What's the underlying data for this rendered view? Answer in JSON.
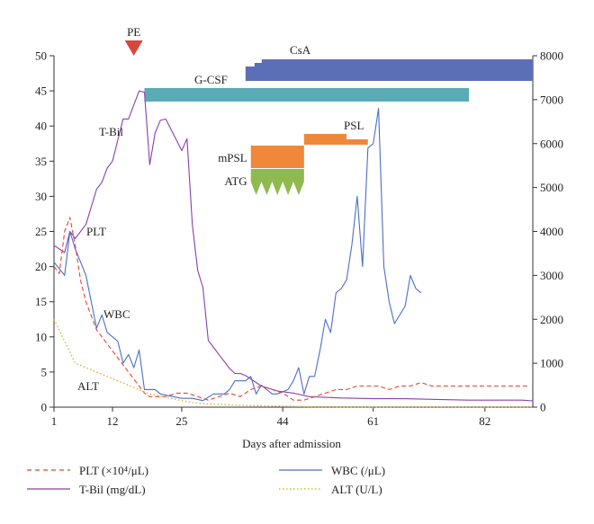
{
  "chart_data": {
    "type": "line",
    "xlabel": "Days after admission",
    "x_ticks": [
      1,
      12,
      25,
      44,
      61,
      82
    ],
    "x_range": [
      1,
      91
    ],
    "y_left_range": [
      0,
      50
    ],
    "y_left_ticks": [
      0,
      5,
      10,
      15,
      20,
      25,
      30,
      35,
      40,
      45,
      50
    ],
    "y_right_range": [
      0,
      8000
    ],
    "y_right_ticks": [
      0,
      1000,
      2000,
      3000,
      4000,
      5000,
      6000,
      7000,
      8000
    ],
    "grid": false,
    "legend_position": "bottom",
    "series": [
      {
        "name": "T-Bil (mg/dL)",
        "label": "T-Bil",
        "axis": "left",
        "color": "#8a3fb0",
        "style": "solid",
        "points": [
          [
            1,
            23
          ],
          [
            3,
            22
          ],
          [
            4,
            25
          ],
          [
            5,
            24
          ],
          [
            7,
            26
          ],
          [
            9,
            31
          ],
          [
            10,
            32
          ],
          [
            11,
            34
          ],
          [
            12,
            35
          ],
          [
            13,
            38
          ],
          [
            14,
            41
          ],
          [
            15,
            41
          ],
          [
            16,
            43
          ],
          [
            17,
            45
          ],
          [
            18,
            44.8
          ],
          [
            19,
            34.5
          ],
          [
            20,
            39
          ],
          [
            21,
            40.8
          ],
          [
            22,
            41
          ],
          [
            24,
            38
          ],
          [
            25,
            36.5
          ],
          [
            26,
            38.2
          ],
          [
            27,
            26
          ],
          [
            28,
            19.5
          ],
          [
            29,
            17
          ],
          [
            30,
            9.5
          ],
          [
            31,
            8.5
          ],
          [
            32,
            7.5
          ],
          [
            33,
            6.5
          ],
          [
            34,
            5.5
          ],
          [
            35,
            4.8
          ],
          [
            36,
            4.8
          ],
          [
            37,
            4.5
          ],
          [
            40,
            3
          ],
          [
            43,
            2.3
          ],
          [
            46,
            2
          ],
          [
            49,
            1.5
          ],
          [
            55,
            1.3
          ],
          [
            61,
            1.2
          ],
          [
            67,
            1.2
          ],
          [
            73,
            1.1
          ],
          [
            79,
            1
          ],
          [
            85,
            1
          ],
          [
            89,
            1
          ],
          [
            91,
            0.9
          ]
        ]
      },
      {
        "name": "WBC (/μL)",
        "label": "WBC",
        "axis": "right",
        "color": "#4a6fc8",
        "style": "solid",
        "points": [
          [
            1,
            3300
          ],
          [
            3,
            3000
          ],
          [
            4,
            4000
          ],
          [
            5,
            3600
          ],
          [
            6,
            3300
          ],
          [
            7,
            3000
          ],
          [
            9,
            1800
          ],
          [
            10,
            2100
          ],
          [
            11,
            1700
          ],
          [
            12,
            1600
          ],
          [
            13,
            1500
          ],
          [
            14,
            1000
          ],
          [
            15,
            1200
          ],
          [
            16,
            900
          ],
          [
            17,
            1300
          ],
          [
            18,
            400
          ],
          [
            19,
            400
          ],
          [
            20,
            400
          ],
          [
            21,
            300
          ],
          [
            23,
            250
          ],
          [
            25,
            200
          ],
          [
            27,
            200
          ],
          [
            29,
            150
          ],
          [
            31,
            300
          ],
          [
            32,
            300
          ],
          [
            33,
            300
          ],
          [
            34,
            400
          ],
          [
            35,
            600
          ],
          [
            36,
            600
          ],
          [
            37,
            600
          ],
          [
            38,
            700
          ],
          [
            39,
            300
          ],
          [
            40,
            500
          ],
          [
            41,
            400
          ],
          [
            42,
            300
          ],
          [
            43,
            300
          ],
          [
            45,
            400
          ],
          [
            46,
            600
          ],
          [
            47,
            900
          ],
          [
            48,
            300
          ],
          [
            49,
            700
          ],
          [
            50,
            700
          ],
          [
            51,
            1300
          ],
          [
            52,
            2000
          ],
          [
            53,
            1700
          ],
          [
            54,
            2600
          ],
          [
            55,
            2700
          ],
          [
            56,
            2900
          ],
          [
            57,
            3700
          ],
          [
            58,
            4800
          ],
          [
            59,
            3200
          ],
          [
            60,
            5900
          ],
          [
            61,
            6000
          ],
          [
            62,
            6800
          ],
          [
            63,
            3200
          ],
          [
            64,
            2400
          ],
          [
            65,
            1900
          ],
          [
            66,
            2100
          ],
          [
            67,
            2300
          ],
          [
            68,
            3000
          ],
          [
            69,
            2700
          ],
          [
            70,
            2600
          ]
        ]
      },
      {
        "name": "PLT (×10⁴/μL)",
        "label": "PLT",
        "axis": "left",
        "color": "#e8452c",
        "style": "dashed",
        "points": [
          [
            1,
            20
          ],
          [
            2,
            19
          ],
          [
            3,
            25
          ],
          [
            4,
            27
          ],
          [
            5,
            23
          ],
          [
            6,
            18
          ],
          [
            7,
            15
          ],
          [
            8,
            13
          ],
          [
            9,
            11
          ],
          [
            10,
            10
          ],
          [
            11,
            9
          ],
          [
            12,
            8
          ],
          [
            13,
            7
          ],
          [
            14,
            6
          ],
          [
            15,
            5
          ],
          [
            16,
            4
          ],
          [
            17,
            3
          ],
          [
            18,
            2
          ],
          [
            19,
            1.5
          ],
          [
            20,
            1.5
          ],
          [
            22,
            1.5
          ],
          [
            24,
            2
          ],
          [
            26,
            2
          ],
          [
            28,
            1.5
          ],
          [
            30,
            1
          ],
          [
            32,
            1.5
          ],
          [
            34,
            2
          ],
          [
            36,
            1.5
          ],
          [
            38,
            2.5
          ],
          [
            40,
            3
          ],
          [
            42,
            2.5
          ],
          [
            44,
            2
          ],
          [
            46,
            1
          ],
          [
            48,
            1
          ],
          [
            50,
            1.5
          ],
          [
            52,
            2
          ],
          [
            54,
            2.5
          ],
          [
            56,
            2.5
          ],
          [
            58,
            3
          ],
          [
            60,
            3
          ],
          [
            62,
            3
          ],
          [
            64,
            2.5
          ],
          [
            66,
            3
          ],
          [
            68,
            3
          ],
          [
            70,
            3.5
          ],
          [
            72,
            3
          ],
          [
            74,
            3
          ],
          [
            76,
            3
          ],
          [
            78,
            3
          ],
          [
            80,
            3
          ],
          [
            82,
            3
          ],
          [
            84,
            3
          ],
          [
            86,
            3
          ],
          [
            88,
            3
          ],
          [
            90,
            3
          ]
        ]
      },
      {
        "name": "ALT (U/L)",
        "label": "ALT",
        "axis": "right",
        "color": "#d8b42c",
        "style": "dotted",
        "points": [
          [
            1,
            2000
          ],
          [
            3,
            1500
          ],
          [
            5,
            1000
          ],
          [
            7,
            900
          ],
          [
            9,
            800
          ],
          [
            11,
            700
          ],
          [
            13,
            600
          ],
          [
            15,
            500
          ],
          [
            17,
            400
          ],
          [
            19,
            300
          ],
          [
            21,
            250
          ],
          [
            23,
            200
          ],
          [
            25,
            150
          ],
          [
            27,
            100
          ],
          [
            29,
            80
          ],
          [
            31,
            70
          ],
          [
            33,
            60
          ],
          [
            35,
            50
          ],
          [
            37,
            40
          ],
          [
            39,
            35
          ],
          [
            41,
            30
          ],
          [
            43,
            25
          ],
          [
            45,
            20
          ],
          [
            47,
            15
          ],
          [
            49,
            10
          ],
          [
            51,
            8
          ],
          [
            53,
            6
          ],
          [
            55,
            5
          ],
          [
            57,
            4
          ],
          [
            59,
            3
          ],
          [
            61,
            2
          ],
          [
            63,
            2
          ],
          [
            65,
            1
          ],
          [
            67,
            1
          ],
          [
            69,
            1
          ],
          [
            71,
            1
          ],
          [
            73,
            1
          ],
          [
            75,
            1
          ],
          [
            77,
            1
          ],
          [
            79,
            1
          ],
          [
            81,
            1
          ],
          [
            83,
            1
          ],
          [
            85,
            1
          ],
          [
            87,
            1
          ],
          [
            89,
            1
          ],
          [
            91,
            1
          ]
        ]
      }
    ],
    "treatments": [
      {
        "label": "CsA",
        "start": 37,
        "end": 91,
        "color": "#5b6fb8"
      },
      {
        "label": "G-CSF",
        "start": 18,
        "end": 79,
        "color": "#5aabb5"
      },
      {
        "label": "PSL",
        "start": 48,
        "end": 60,
        "color": "#f0883a"
      },
      {
        "label": "mPSL",
        "start": 38,
        "end": 48,
        "color": "#f0883a"
      },
      {
        "label": "ATG",
        "start": 38,
        "end": 48,
        "color": "#8fba4f"
      }
    ],
    "markers": [
      {
        "label": "PE",
        "day": 16,
        "color": "#d8463c"
      }
    ]
  }
}
